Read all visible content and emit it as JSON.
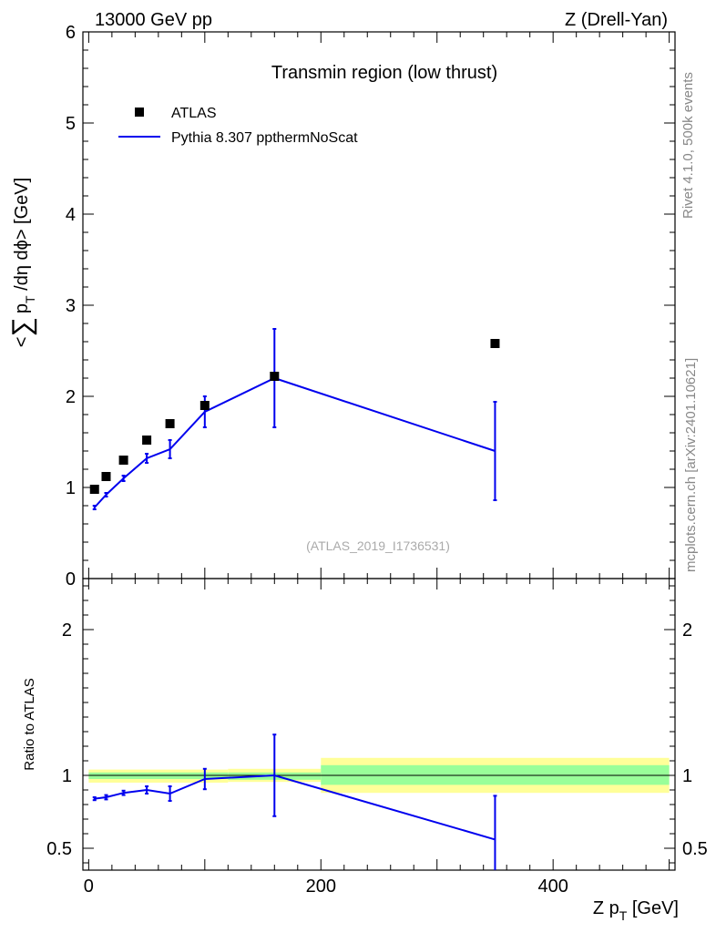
{
  "header": {
    "left": "13000 GeV pp",
    "right": "Z (Drell-Yan)"
  },
  "side_labels": {
    "rivet": "Rivet 4.1.0,  500k events",
    "mcplots": "mcplots.cern.ch [arXiv:2401.10621]"
  },
  "colors": {
    "mc": "#0000ee",
    "data": "#000000",
    "band_green": "#99ff99",
    "band_yellow": "#ffff99"
  },
  "chart_data": [
    {
      "type": "scatter",
      "title": "Transmin region (low thrust)",
      "ylabel": "<∑ p_T /dη dϕ> [GeV]",
      "ylabel_parts": {
        "pre": "<",
        "sum": "∑",
        "p": "p",
        "sub": "T",
        "post": " /dη dϕ> [GeV]"
      },
      "xlabel": "",
      "xlim": [
        -5,
        505
      ],
      "ylim": [
        0,
        6
      ],
      "yticks": [
        "0",
        "1",
        "2",
        "3",
        "4",
        "5",
        "6"
      ],
      "analysis_id": "(ATLAS_2019_I1736531)",
      "legend_position": "top-left",
      "series": [
        {
          "name": "ATLAS",
          "marker": "square",
          "x": [
            5,
            15,
            30,
            50,
            70,
            100,
            160,
            350
          ],
          "y": [
            0.98,
            1.12,
            1.3,
            1.52,
            1.7,
            1.9,
            2.22,
            2.58
          ]
        },
        {
          "name": "Pythia 8.307 ppthermNoScat",
          "marker": "line",
          "x": [
            5,
            15,
            30,
            50,
            70,
            100,
            160,
            350
          ],
          "y": [
            0.78,
            0.92,
            1.1,
            1.32,
            1.42,
            1.83,
            2.2,
            1.4
          ],
          "err": [
            0.02,
            0.02,
            0.03,
            0.05,
            0.1,
            0.17,
            0.54,
            0.54
          ]
        }
      ]
    },
    {
      "type": "line",
      "title": "",
      "ylabel": "Ratio to ATLAS",
      "xlabel": "Z p_T [GeV]",
      "xlabel_parts": {
        "pre": "Z p",
        "sub": "T",
        "post": " [GeV]"
      },
      "xlim": [
        -5,
        505
      ],
      "ylim": [
        0.35,
        2.35
      ],
      "yticks_left": [
        "0.5",
        "1",
        "2"
      ],
      "yticks_right": [
        "0.5",
        "1",
        "2"
      ],
      "xticks": [
        "0",
        "200",
        "400"
      ],
      "reference": 1,
      "bands": [
        {
          "x0": 0,
          "x1": 120,
          "green": [
            0.975,
            1.02
          ],
          "yellow": [
            0.95,
            1.04
          ]
        },
        {
          "x0": 120,
          "x1": 200,
          "green": [
            0.97,
            1.02
          ],
          "yellow": [
            0.955,
            1.045
          ]
        },
        {
          "x0": 200,
          "x1": 500,
          "green": [
            0.935,
            1.07
          ],
          "yellow": [
            0.88,
            1.12
          ]
        }
      ],
      "series": [
        {
          "name": "Pythia 8.307 ppthermNoScat / ATLAS",
          "x": [
            5,
            15,
            30,
            50,
            70,
            100,
            160,
            350
          ],
          "y": [
            0.84,
            0.85,
            0.88,
            0.9,
            0.875,
            0.975,
            1.0,
            0.56
          ],
          "err": [
            0.01,
            0.015,
            0.015,
            0.025,
            0.05,
            0.07,
            0.28,
            0.3
          ]
        }
      ]
    }
  ]
}
